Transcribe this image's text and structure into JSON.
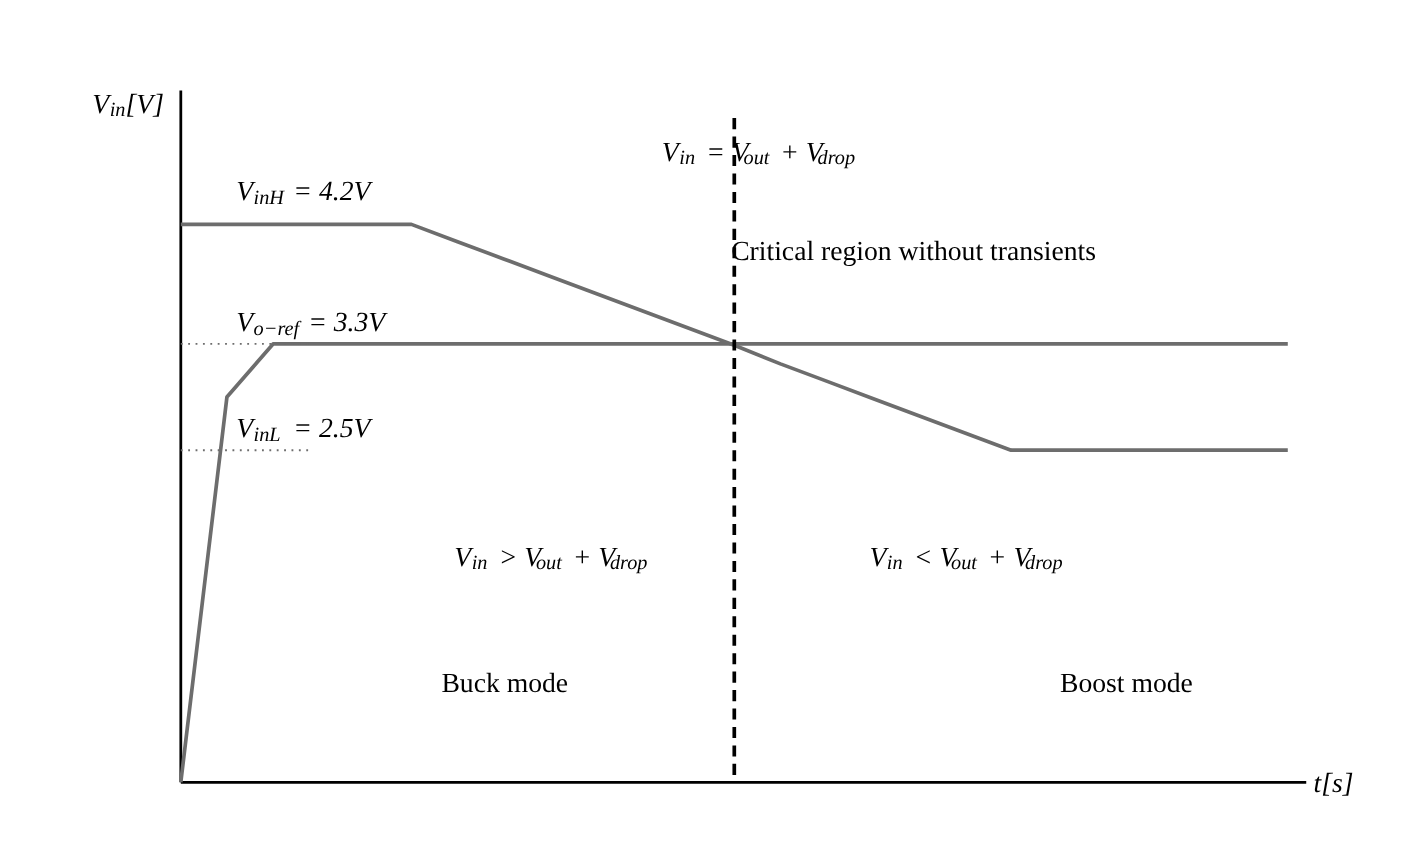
{
  "chart_data": {
    "type": "line",
    "xlabel": "t[s]",
    "ylabel": "V$_{in}$[V]",
    "categories": [
      null,
      null,
      null,
      null,
      null,
      null,
      null,
      null,
      null,
      null,
      null,
      null,
      null,
      null,
      null,
      null,
      null,
      null,
      null,
      null,
      null,
      null,
      null,
      null,
      null
    ],
    "series": [
      {
        "color": "#6d6d6d",
        "values": [
          4.2,
          4.2,
          4.2,
          4.2,
          4.2,
          4.2,
          4.07,
          3.94,
          3.81,
          3.68,
          3.55,
          3.42,
          3.29,
          3.15,
          3.02,
          2.89,
          2.76,
          2.63,
          2.5,
          2.5,
          2.5,
          2.5,
          2.5,
          2.5,
          2.5
        ]
      },
      {
        "color": "#6d6d6d",
        "values": [
          0,
          2.9,
          3.3,
          3.3,
          3.3,
          3.3,
          3.3,
          3.3,
          3.3,
          3.3,
          3.3,
          3.3,
          3.3,
          3.3,
          3.3,
          3.3,
          3.3,
          3.3,
          3.3,
          3.3,
          3.3,
          3.3,
          3.3,
          3.3,
          3.3
        ]
      }
    ],
    "ylim": [
      0,
      5
    ],
    "line_style": "solid",
    "marker": "none",
    "ref_lines": [
      {
        "axis": "y",
        "value": 3.3,
        "label": "V$_{o−ref}$ = 3.3V",
        "line_style": "dotted",
        "color": "#6d6d6d"
      },
      {
        "axis": "y",
        "value": 2.5,
        "label": "V$_{inL}$ = 2.5V",
        "line_style": "dotted",
        "color": "#6d6d6d"
      }
    ],
    "annotations": [
      "V$_{inH}$ = 4.2V",
      "Critical region without transients",
      "V$_{in}$ > V$_{out}$ + V$_{drop}$",
      "V$_{in}$ < V$_{out}$ + V$_{drop}$",
      "Buck mode",
      "Boost mode",
      "V$_{in}$ = V$_{out}$ + V$_{drop}$"
    ]
  }
}
